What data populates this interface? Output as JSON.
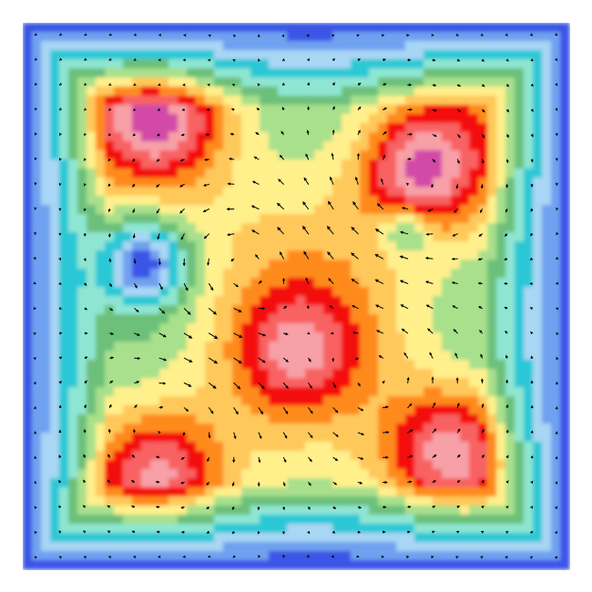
{
  "chart_data": {
    "type": "heatmap",
    "title": "",
    "xlabel": "",
    "ylabel": "",
    "legend": "none",
    "grid": false,
    "overlay": "vector-field",
    "xlim": [
      0,
      1
    ],
    "ylim": [
      0,
      1
    ],
    "colormap": [
      "#3a55e6",
      "#6fa0f0",
      "#a9d6f4",
      "#2ac8d6",
      "#8ee6d2",
      "#6cc07a",
      "#a8e08c",
      "#fff08c",
      "#ffc85a",
      "#ff8a1e",
      "#f40a0a",
      "#f86262",
      "#f7a0a8",
      "#d24aa8"
    ],
    "value_range": [
      0,
      1
    ],
    "color_scale_labels": [],
    "intensity_peaks": [
      {
        "x": 0.25,
        "y": 0.82,
        "value": 0.9
      },
      {
        "x": 0.73,
        "y": 0.73,
        "value": 0.95
      },
      {
        "x": 0.5,
        "y": 0.4,
        "value": 0.8
      },
      {
        "x": 0.78,
        "y": 0.22,
        "value": 0.9
      },
      {
        "x": 0.25,
        "y": 0.18,
        "value": 0.85
      }
    ],
    "vortices": [
      {
        "x": 0.4,
        "y": 0.55,
        "strength": 1.0
      },
      {
        "x": 0.65,
        "y": 0.35,
        "strength": 0.8
      },
      {
        "x": 0.28,
        "y": 0.28,
        "strength": -0.6
      },
      {
        "x": 0.7,
        "y": 0.7,
        "strength": -0.7
      }
    ]
  }
}
